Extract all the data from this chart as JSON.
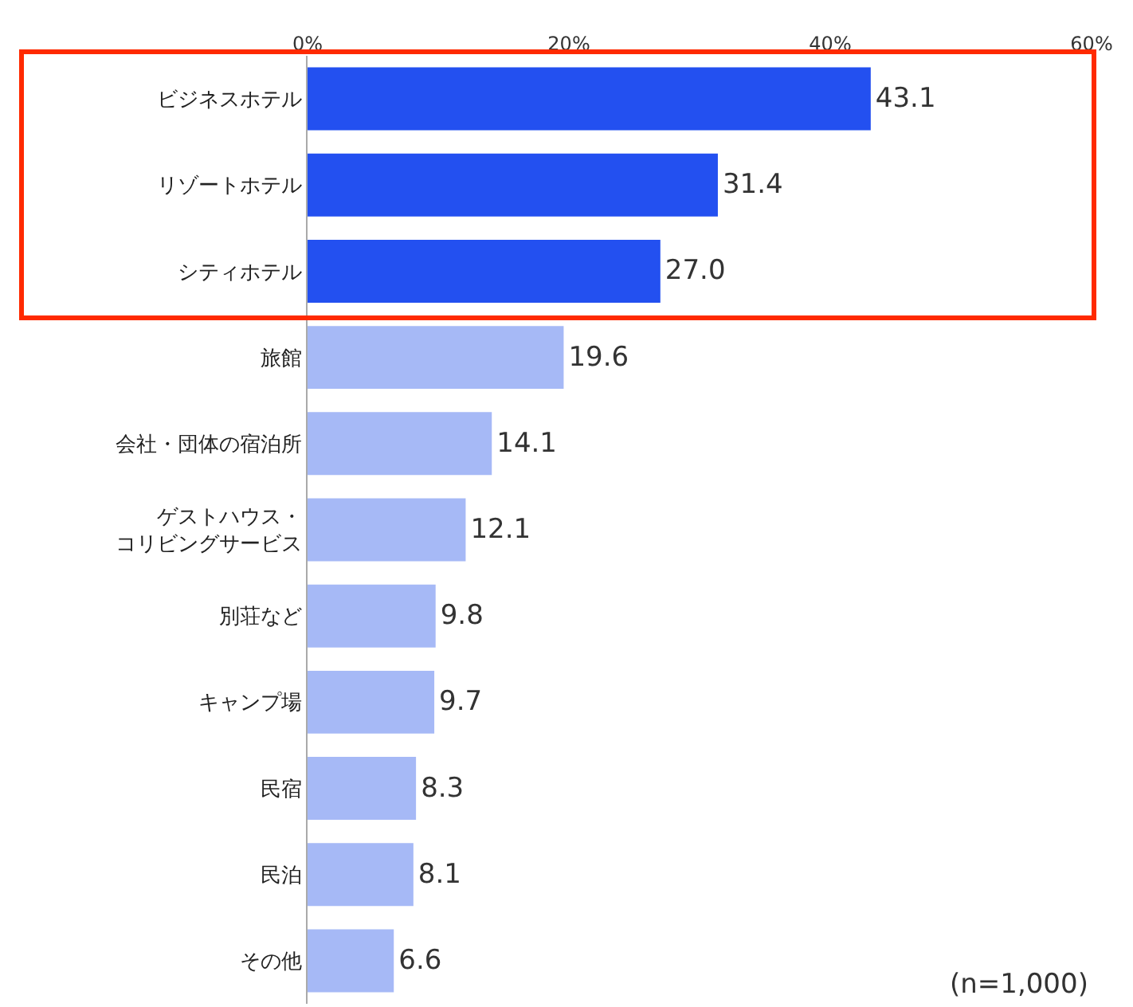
{
  "chart_data": {
    "type": "bar",
    "orientation": "horizontal",
    "categories": [
      "ビジネスホテル",
      "リゾートホテル",
      "シティホテル",
      "旅館",
      "会社・団体の宿泊所",
      "ゲストハウス・コリビングサービス",
      "別荘など",
      "キャンプ場",
      "民宿",
      "民泊",
      "その他"
    ],
    "values": [
      43.1,
      31.4,
      27.0,
      19.6,
      14.1,
      12.1,
      9.8,
      9.7,
      8.3,
      8.1,
      6.6
    ],
    "colors": [
      "#2350f0",
      "#2350f0",
      "#2350f0",
      "#a6b9f6",
      "#a6b9f6",
      "#a6b9f6",
      "#a6b9f6",
      "#a6b9f6",
      "#a6b9f6",
      "#a6b9f6",
      "#a6b9f6"
    ],
    "value_labels": [
      "43.1",
      "31.4",
      "27.0",
      "19.6",
      "14.1",
      "12.1",
      "9.8",
      "9.7",
      "8.3",
      "8.1",
      "6.6"
    ],
    "xlim": [
      0,
      60
    ],
    "xticks": [
      {
        "value": 0,
        "label": "0%"
      },
      {
        "value": 20,
        "label": "20%"
      },
      {
        "value": 40,
        "label": "40%"
      },
      {
        "value": 60,
        "label": "60%"
      }
    ],
    "grid": false,
    "annotations": [
      "(n=1,000)"
    ]
  }
}
